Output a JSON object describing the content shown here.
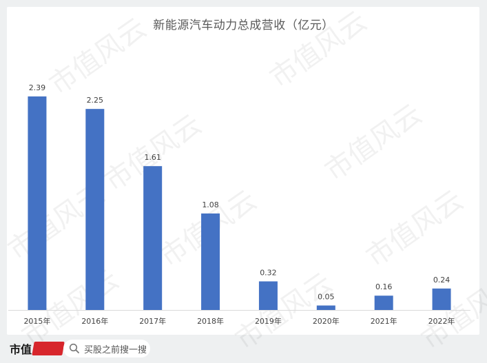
{
  "chart_data": {
    "type": "bar",
    "title": "新能源汽车动力总成营收（亿元）",
    "categories": [
      "2015年",
      "2016年",
      "2017年",
      "2018年",
      "2019年",
      "2020年",
      "2021年",
      "2022年"
    ],
    "values": [
      2.39,
      2.25,
      1.61,
      1.08,
      0.32,
      0.05,
      0.16,
      0.24
    ],
    "value_labels": [
      "2.39",
      "2.25",
      "1.61",
      "1.08",
      "0.32",
      "0.05",
      "0.16",
      "0.24"
    ],
    "ylim": [
      0,
      2.39
    ],
    "grid": false,
    "legend": "none",
    "bar_color": "#4472c4"
  },
  "watermark": {
    "text": "市值风云"
  },
  "footer": {
    "logo_text": "市值",
    "search_placeholder": "买股之前搜一搜"
  },
  "colors": {
    "background": "#eef0f1",
    "card": "#ffffff",
    "axis": "#d9d9d9",
    "label": "#404040",
    "brand_red": "#d7262c"
  }
}
